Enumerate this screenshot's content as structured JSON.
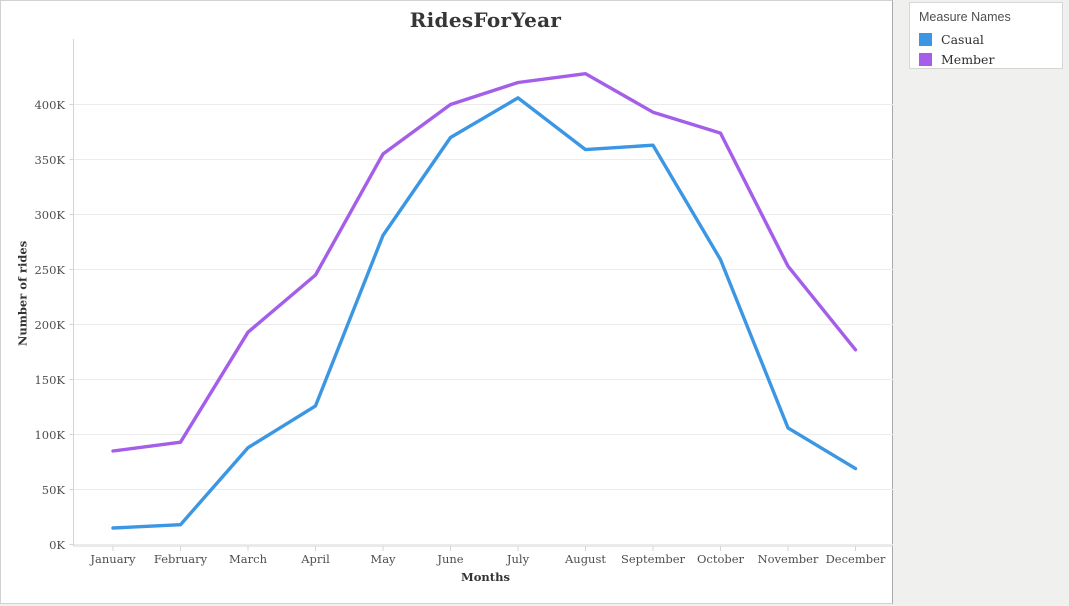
{
  "chart_data": {
    "type": "line",
    "title": "RidesForYear",
    "xlabel": "Months",
    "ylabel": "Number of rides",
    "categories": [
      "January",
      "February",
      "March",
      "April",
      "May",
      "June",
      "July",
      "August",
      "September",
      "October",
      "November",
      "December"
    ],
    "series": [
      {
        "name": "Casual",
        "color": "#3B96E4",
        "values": [
          15000,
          18000,
          88000,
          126000,
          281000,
          370000,
          406000,
          359000,
          363000,
          259000,
          106000,
          69000
        ]
      },
      {
        "name": "Member",
        "color": "#A45EE9",
        "values": [
          85000,
          93000,
          193000,
          245000,
          355000,
          400000,
          420000,
          428000,
          393000,
          374000,
          253000,
          177000
        ]
      }
    ],
    "y_ticks": [
      {
        "value": 0,
        "label": "0K"
      },
      {
        "value": 50000,
        "label": "50K"
      },
      {
        "value": 100000,
        "label": "100K"
      },
      {
        "value": 150000,
        "label": "150K"
      },
      {
        "value": 200000,
        "label": "200K"
      },
      {
        "value": 250000,
        "label": "250K"
      },
      {
        "value": 300000,
        "label": "300K"
      },
      {
        "value": 350000,
        "label": "350K"
      },
      {
        "value": 400000,
        "label": "400K"
      }
    ],
    "ylim": [
      0,
      460000
    ],
    "grid": true,
    "legend": {
      "title": "Measure Names",
      "position": "top-right"
    }
  }
}
